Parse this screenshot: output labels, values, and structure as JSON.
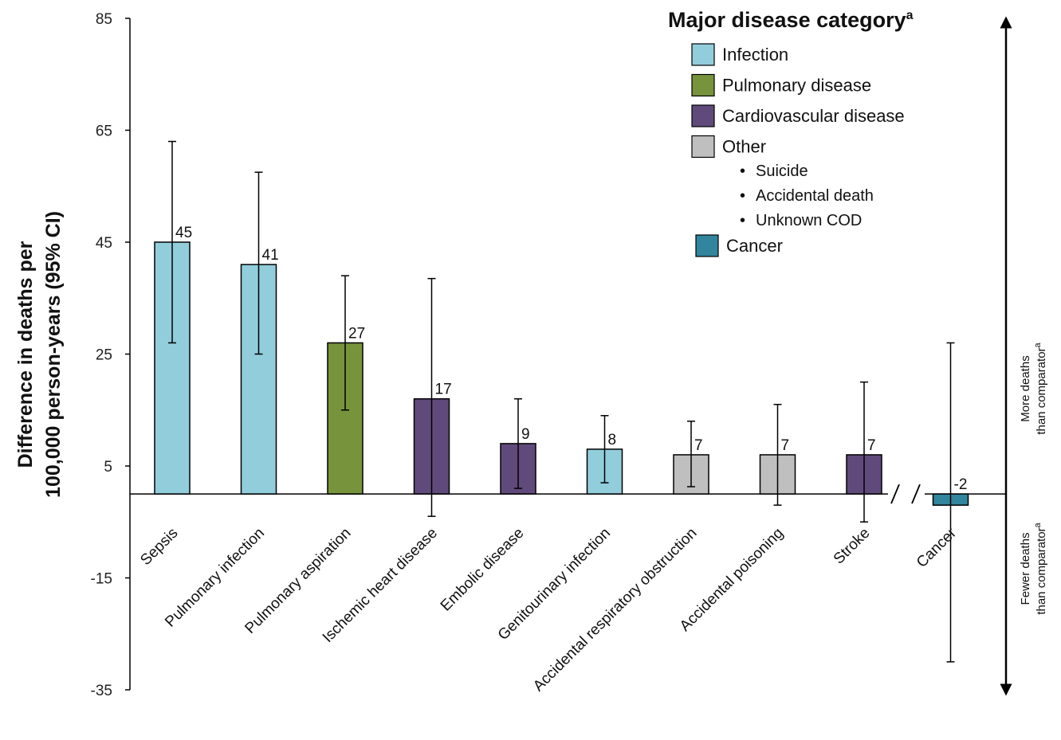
{
  "chart_data": {
    "type": "bar",
    "ylabel": "Difference in deaths per 100,000 person-years (95% CI)",
    "ylabel_lines": [
      "Difference in deaths per",
      "100,000 person-years (95% CI)"
    ],
    "ylim": [
      -35,
      85
    ],
    "yticks": [
      85,
      65,
      45,
      25,
      5,
      -15,
      -35
    ],
    "categories": [
      "Sepsis",
      "Pulmonary infection",
      "Pulmonary aspiration",
      "Ischemic heart disease",
      "Embolic disease",
      "Genitourinary infection",
      "Accidental respiratory obstruction",
      "Accidental poisoning",
      "Stroke",
      "Cancer"
    ],
    "values": [
      45,
      41,
      27,
      17,
      9,
      8,
      7,
      7,
      7,
      -2
    ],
    "value_labels": [
      "45",
      "41",
      "27",
      "17",
      "9",
      "8",
      "7",
      "7",
      "7",
      "-2"
    ],
    "ci_low": [
      27,
      25,
      15,
      -4,
      1,
      2,
      1.3,
      -2,
      -5,
      -30
    ],
    "ci_high": [
      63,
      57.5,
      39,
      38.5,
      17,
      14,
      13,
      16,
      20,
      27
    ],
    "bar_category": [
      "Infection",
      "Infection",
      "Pulmonary disease",
      "Cardiovascular disease",
      "Cardiovascular disease",
      "Infection",
      "Other",
      "Other",
      "Cardiovascular disease",
      "Cancer"
    ],
    "colors": {
      "Infection": "#92cddc",
      "Pulmonary disease": "#77933c",
      "Cardiovascular disease": "#604a7b",
      "Other": "#bfbfbf",
      "Cancer": "#31859c"
    },
    "axis_break": true,
    "legend": {
      "title": "Major disease category",
      "title_sup": "a",
      "placement": "top-right",
      "entries": [
        {
          "label": "Infection",
          "color": "#92cddc"
        },
        {
          "label": "Pulmonary disease",
          "color": "#77933c"
        },
        {
          "label": "Cardiovascular disease",
          "color": "#604a7b"
        },
        {
          "label": "Other",
          "color": "#bfbfbf",
          "sub": [
            "Suicide",
            "Accidental death",
            "Unknown COD"
          ]
        },
        {
          "label": "Cancer",
          "color": "#31859c"
        }
      ]
    },
    "side_annotations": {
      "more": [
        "More deaths",
        "than comparator"
      ],
      "fewer": [
        "Fewer deaths",
        "than comparator"
      ],
      "sup": "a"
    }
  }
}
